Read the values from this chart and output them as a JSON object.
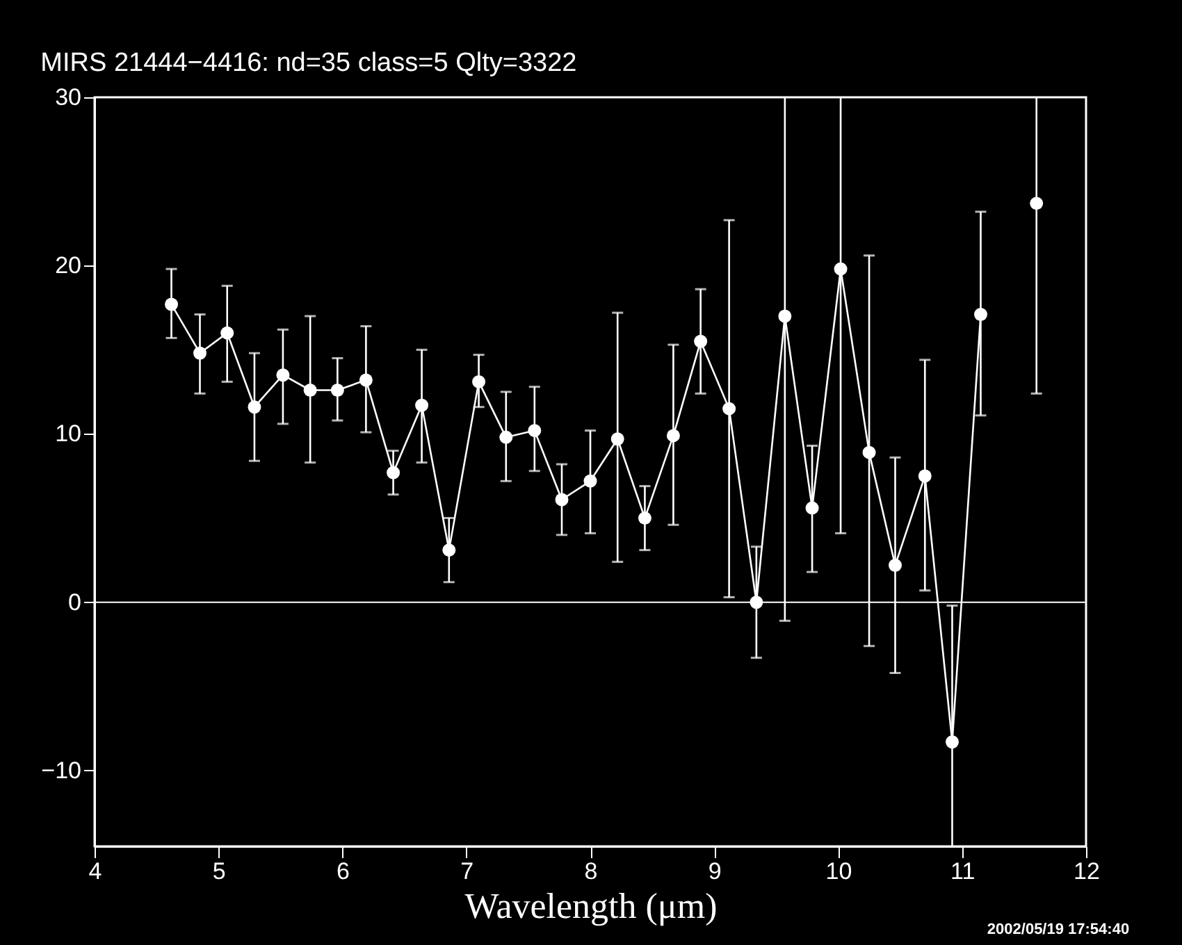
{
  "chart_data": {
    "type": "line",
    "title": "MIRS 21444−4416:    nd=35   class=5   Qlty=3322",
    "xlabel": "Wavelength (μm)",
    "xlim": [
      4,
      12
    ],
    "xticks": [
      4,
      5,
      6,
      7,
      8,
      9,
      10,
      11,
      12
    ],
    "ylim": [
      -14.5,
      30
    ],
    "yticks": [
      -10,
      0,
      10,
      20,
      30
    ],
    "grid": false,
    "ref_lines": [
      {
        "axis": "y",
        "value": 0,
        "color": "#ffffff"
      }
    ],
    "annotations": [
      "2002/05/19 17:54:40"
    ],
    "series": [
      {
        "color": "#ffffff",
        "marker": "circle",
        "line_style": "solid",
        "x": [
          4.62,
          4.85,
          5.07,
          5.29,
          5.52,
          5.74,
          5.96,
          6.19,
          6.41,
          6.64,
          6.86,
          7.1,
          7.32,
          7.55,
          7.77,
          8.0,
          8.22,
          8.44,
          8.67,
          8.89,
          9.12,
          9.34,
          9.57,
          9.79,
          10.02,
          10.25,
          10.46,
          10.7,
          10.92,
          11.15
        ],
        "values": [
          17.7,
          14.8,
          16.0,
          11.6,
          13.5,
          12.6,
          12.6,
          13.2,
          7.7,
          11.7,
          3.1,
          13.1,
          9.8,
          10.2,
          6.1,
          7.2,
          9.7,
          5.0,
          9.9,
          15.5,
          11.5,
          0.0,
          17.0,
          5.6,
          19.8,
          8.9,
          2.2,
          7.5,
          -8.3,
          17.1
        ],
        "errors": [
          [
            15.7,
            19.8
          ],
          [
            12.4,
            17.1
          ],
          [
            13.1,
            18.8
          ],
          [
            8.4,
            14.8
          ],
          [
            10.6,
            16.2
          ],
          [
            8.3,
            17.0
          ],
          [
            10.8,
            14.5
          ],
          [
            10.1,
            16.4
          ],
          [
            6.4,
            9.0
          ],
          [
            8.3,
            15.0
          ],
          [
            1.2,
            5.0
          ],
          [
            11.6,
            14.7
          ],
          [
            7.2,
            12.5
          ],
          [
            7.8,
            12.8
          ],
          [
            4.0,
            8.2
          ],
          [
            4.1,
            10.2
          ],
          [
            2.4,
            17.2
          ],
          [
            3.1,
            6.9
          ],
          [
            4.6,
            15.3
          ],
          [
            12.4,
            18.6
          ],
          [
            0.3,
            22.7
          ],
          [
            -3.3,
            3.3
          ],
          [
            -1.1,
            30
          ],
          [
            1.8,
            9.3
          ],
          [
            4.1,
            30
          ],
          [
            -2.6,
            20.6
          ],
          [
            -4.2,
            8.6
          ],
          [
            0.7,
            14.4
          ],
          [
            -14.5,
            -0.2
          ],
          [
            11.1,
            23.2
          ]
        ]
      },
      {
        "type": "scatter",
        "color": "#ffffff",
        "marker": "circle",
        "x": [
          11.6
        ],
        "values": [
          23.7
        ],
        "errors": [
          [
            12.4,
            30
          ]
        ]
      }
    ]
  }
}
